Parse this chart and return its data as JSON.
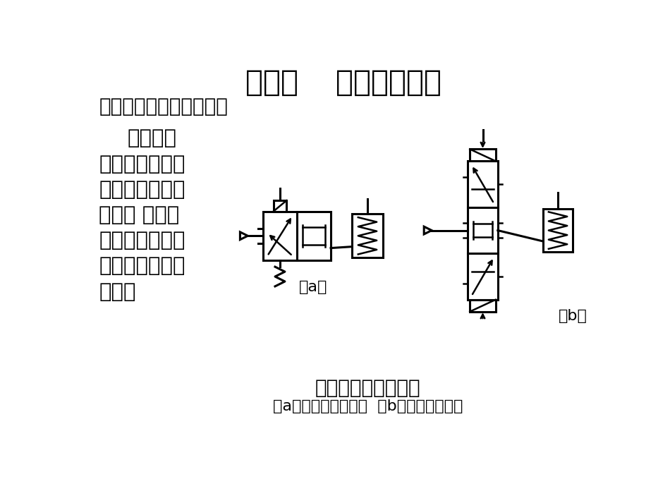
{
  "title": "第一节    方向控制回路",
  "subtitle": "一、单作用气缸换向回路",
  "body_text_bold": "利用电磁",
  "body_text_lines": [
    "换向阀通断电，",
    "将压缩空气间歇",
    "送入气 缸的无",
    "杆腔，与弹簧一",
    "起推动活塞往复",
    "运动。"
  ],
  "caption_main": "单作用气缸换向回路",
  "caption_sub": "（a）二位运动控制；  （b）三位运动控制",
  "label_a": "（a）",
  "label_b": "（b）",
  "bg_color": "#ffffff",
  "text_color": "#000000",
  "title_fontsize": 30,
  "subtitle_fontsize": 20,
  "body_fontsize": 21,
  "caption_fontsize": 19
}
